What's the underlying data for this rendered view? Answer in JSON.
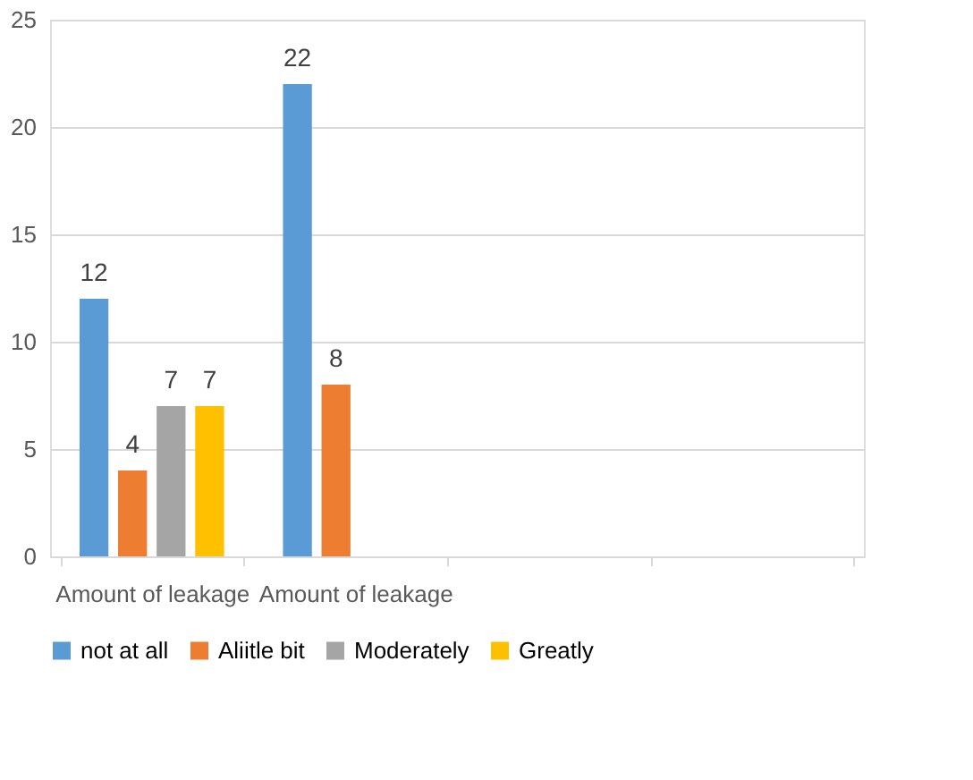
{
  "chart_data": {
    "type": "bar",
    "categories": [
      "Amount of leakage",
      "Amount of leakage",
      null,
      null
    ],
    "series": [
      {
        "name": "not at all",
        "color": "#5b9bd5",
        "values": [
          12,
          22,
          null,
          null
        ]
      },
      {
        "name": "Aliitle bit",
        "color": "#ed7d31",
        "values": [
          4,
          8,
          null,
          null
        ]
      },
      {
        "name": "Moderately",
        "color": "#a5a5a5",
        "values": [
          7,
          null,
          null,
          null
        ]
      },
      {
        "name": "Greatly",
        "color": "#ffc000",
        "values": [
          7,
          null,
          null,
          null
        ]
      }
    ],
    "ylim": [
      0,
      25
    ],
    "yticks": [
      0,
      5,
      10,
      15,
      20,
      25
    ],
    "grid": "y",
    "legend": "bottom",
    "data_labels": true
  }
}
